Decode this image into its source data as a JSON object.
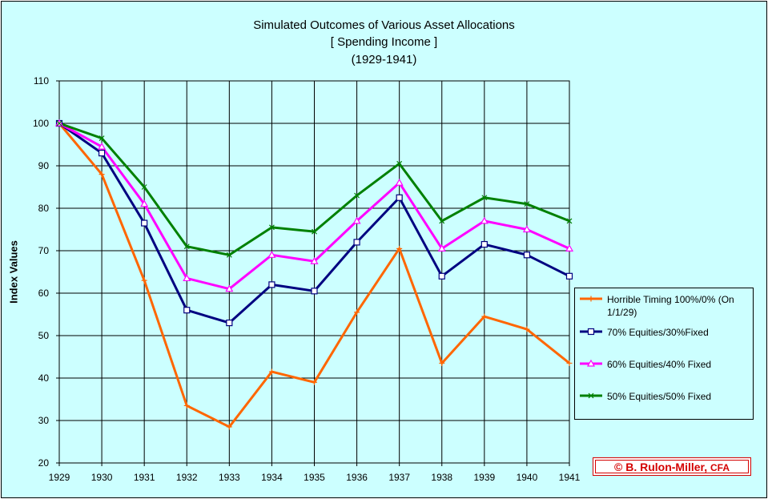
{
  "chart_data": {
    "type": "line",
    "title": "Simulated Outcomes of Various Asset Allocations",
    "subtitle": "[ Spending Income ]",
    "subtitle2": "(1929-1941)",
    "xlabel": "",
    "ylabel": "Index Values",
    "x": [
      "1929",
      "1930",
      "1931",
      "1932",
      "1933",
      "1934",
      "1935",
      "1936",
      "1937",
      "1938",
      "1939",
      "1940",
      "1941"
    ],
    "ylim": [
      20,
      110
    ],
    "yticks": [
      20,
      30,
      40,
      50,
      60,
      70,
      80,
      90,
      100,
      110
    ],
    "grid": true,
    "legend_position": "right",
    "series": [
      {
        "name": "Horrible Timing  100%/0% (On 1/1/29)",
        "color": "#ff6600",
        "marker": "plus",
        "values": [
          100,
          88,
          63,
          33.5,
          28.5,
          41.5,
          39,
          55.5,
          70.5,
          43.5,
          54.5,
          51.5,
          43.5
        ]
      },
      {
        "name": "70% Equities/30%Fixed",
        "color": "#000080",
        "marker": "square",
        "values": [
          100,
          93,
          76.5,
          56,
          53,
          62,
          60.5,
          72,
          82.5,
          64,
          71.5,
          69,
          64
        ]
      },
      {
        "name": "60% Equities/40% Fixed",
        "color": "#ff00ff",
        "marker": "triangle",
        "values": [
          100,
          94.5,
          81,
          63.5,
          61,
          69,
          67.5,
          77,
          86,
          70.5,
          77,
          75,
          70.5
        ]
      },
      {
        "name": "50% Equities/50% Fixed",
        "color": "#008000",
        "marker": "x",
        "values": [
          100,
          96.5,
          85,
          71,
          69,
          75.5,
          74.5,
          83,
          90.5,
          77,
          82.5,
          81,
          77
        ]
      }
    ]
  },
  "copyright": {
    "main": "© B. Rulon-Miller, ",
    "suffix": "CFA",
    "color": "#d40000"
  }
}
